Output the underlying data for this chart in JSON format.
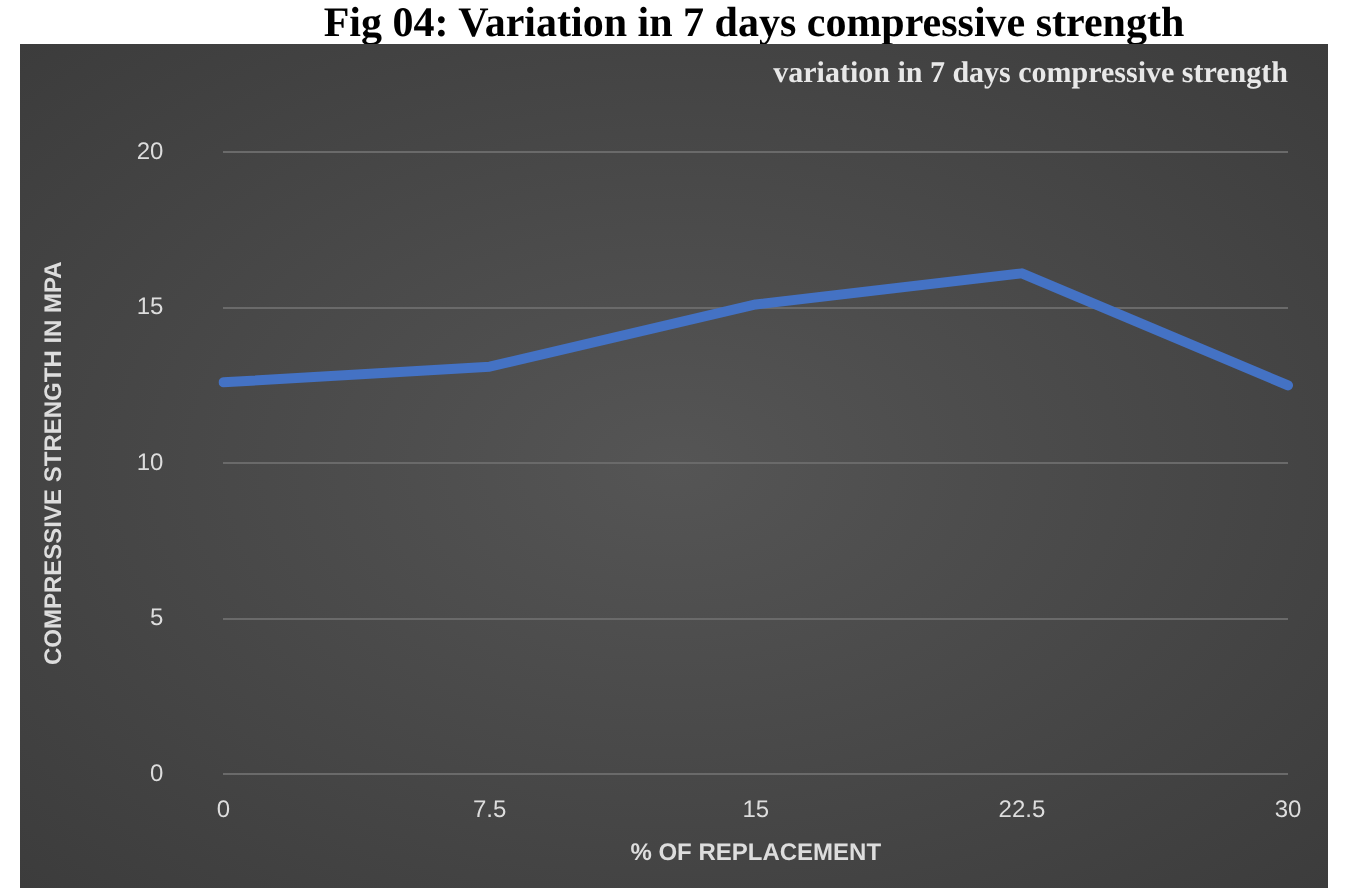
{
  "chart_data": {
    "type": "line",
    "title": "Fig 04: Variation in 7 days compressive strength",
    "subtitle": "variation in 7 days compressive strength",
    "xlabel": "% OF REPLACEMENT",
    "ylabel": "COMPRESSIVE STRENGTH IN MPA",
    "categories": [
      "0",
      "7.5",
      "15",
      "22.5",
      "30"
    ],
    "series": [
      {
        "color": "#4472c4",
        "values": [
          12.6,
          13.1,
          15.1,
          16.1,
          12.5
        ]
      }
    ],
    "ylim": [
      0,
      20
    ],
    "yticks": [
      0,
      5,
      10,
      15,
      20
    ],
    "grid": "y",
    "legend": false,
    "marker": "none",
    "line_style": "solid"
  }
}
